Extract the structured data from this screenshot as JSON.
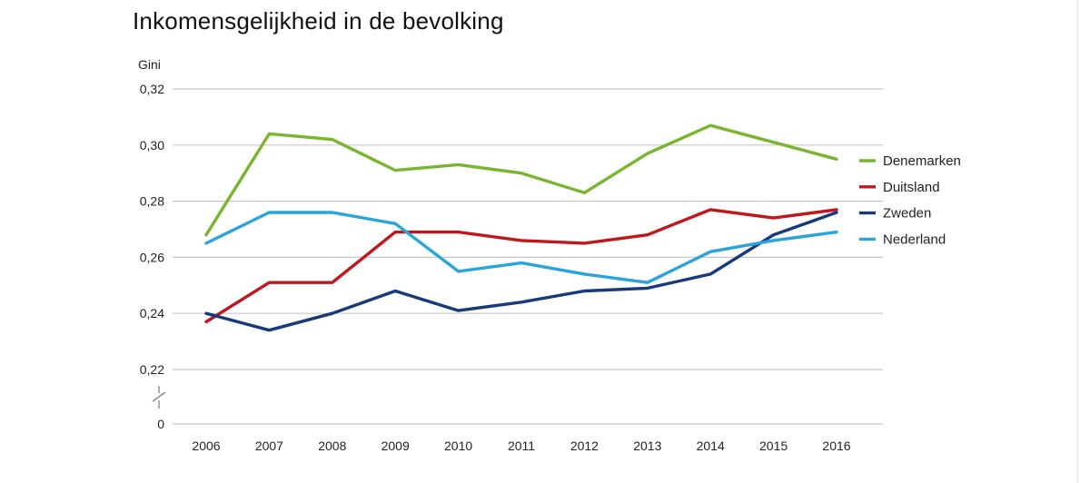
{
  "chart_data": {
    "type": "line",
    "title": "Inkomensgelijkheid in de bevolking",
    "ylabel": "Gini",
    "xlabel": "",
    "x": [
      "2006",
      "2007",
      "2008",
      "2009",
      "2010",
      "2011",
      "2012",
      "2013",
      "2014",
      "2015",
      "2016"
    ],
    "yticks": [
      "0,32",
      "0,30",
      "0,28",
      "0,26",
      "0,24",
      "0,22"
    ],
    "yzero_label": "0",
    "ylim": [
      0.22,
      0.32
    ],
    "axis_break": true,
    "grid": true,
    "legend_position": "right",
    "series": [
      {
        "name": "Denemarken",
        "color": "#7ab530",
        "values": [
          0.268,
          0.304,
          0.302,
          0.291,
          0.293,
          0.29,
          0.283,
          0.297,
          0.307,
          0.301,
          0.295
        ]
      },
      {
        "name": "Duitsland",
        "color": "#c0171c",
        "values": [
          0.237,
          0.251,
          0.251,
          0.269,
          0.269,
          0.266,
          0.265,
          0.268,
          0.277,
          0.274,
          0.277
        ]
      },
      {
        "name": "Zweden",
        "color": "#173a7a",
        "values": [
          0.24,
          0.234,
          0.24,
          0.248,
          0.241,
          0.244,
          0.248,
          0.249,
          0.254,
          0.268,
          0.276
        ]
      },
      {
        "name": "Nederland",
        "color": "#2ba4dc",
        "values": [
          0.265,
          0.276,
          0.276,
          0.272,
          0.255,
          0.258,
          0.254,
          0.251,
          0.262,
          0.266,
          0.269
        ]
      }
    ]
  }
}
